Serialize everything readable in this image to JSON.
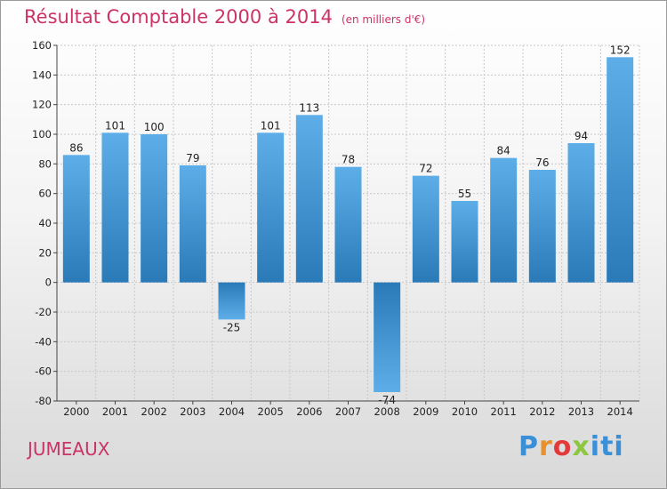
{
  "header": {
    "title": "Résultat Comptable 2000 à 2014",
    "unit": "(en milliers d'€)"
  },
  "footer": {
    "place": "JUMEAUX",
    "logo": {
      "p1": "P",
      "p2": "r",
      "p3": "o",
      "p4": "x",
      "p5": "iti"
    }
  },
  "colors": {
    "title": "#cc3366",
    "bar_light": "#5daee8",
    "bar_dark": "#2a7ab8",
    "grid": "#c8c8c8"
  },
  "chart_data": {
    "type": "bar",
    "title": "Résultat Comptable 2000 à 2014",
    "subtitle": "(en milliers d'€)",
    "xlabel": "",
    "ylabel": "",
    "categories": [
      "2000",
      "2001",
      "2002",
      "2003",
      "2004",
      "2005",
      "2006",
      "2007",
      "2008",
      "2009",
      "2010",
      "2011",
      "2012",
      "2013",
      "2014"
    ],
    "values": [
      86,
      101,
      100,
      79,
      -25,
      101,
      113,
      78,
      -74,
      72,
      55,
      84,
      76,
      94,
      152
    ],
    "value_labels": [
      "86",
      "101",
      "100",
      "79",
      "-25",
      "101",
      "113",
      "78",
      "-74",
      "72",
      "55",
      "84",
      "76",
      "94",
      "152"
    ],
    "yticks": [
      -80,
      -60,
      -40,
      -20,
      0,
      20,
      40,
      60,
      80,
      100,
      120,
      140,
      160
    ],
    "ylim": [
      -80,
      160
    ],
    "grid": true,
    "legend": "none"
  }
}
